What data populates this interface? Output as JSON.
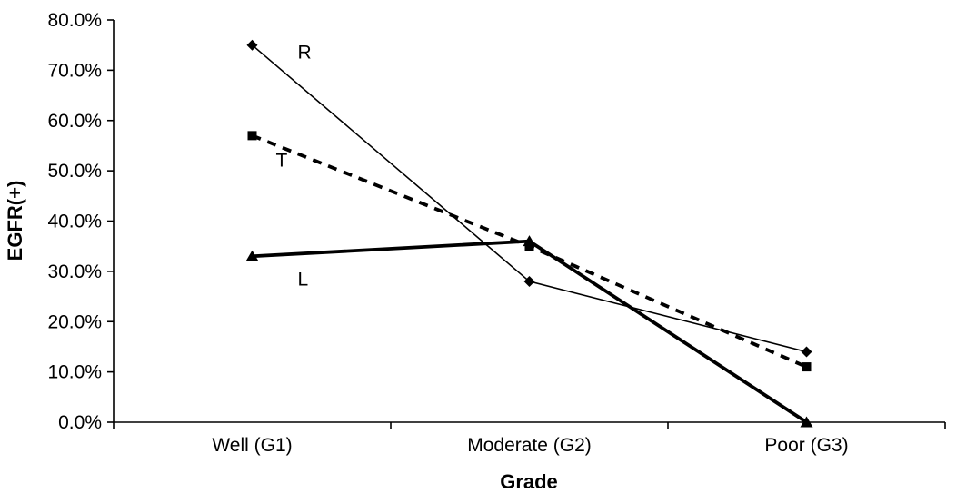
{
  "chart_data": {
    "type": "line",
    "title": "",
    "xlabel": "Grade",
    "ylabel": "EGFR(+)",
    "categories": [
      "Well (G1)",
      "Moderate (G2)",
      "Poor (G3)"
    ],
    "series": [
      {
        "name": "R",
        "values": [
          75,
          28,
          14
        ],
        "unit": "%",
        "marker": "diamond",
        "line_style": "thin-solid",
        "color": "#000000",
        "label_offset": [
          50,
          15
        ]
      },
      {
        "name": "T",
        "values": [
          57,
          35,
          11
        ],
        "unit": "%",
        "marker": "square",
        "line_style": "dashed",
        "color": "#000000",
        "label_offset": [
          26,
          34
        ]
      },
      {
        "name": "L",
        "values": [
          33,
          36,
          0
        ],
        "unit": "%",
        "marker": "triangle",
        "line_style": "thick-solid",
        "color": "#000000",
        "label_offset": [
          50,
          32
        ]
      }
    ],
    "ylim": [
      0,
      80
    ],
    "ytick_step": 10,
    "ytick_labels": [
      "0.0%",
      "10.0%",
      "20.0%",
      "30.0%",
      "40.0%",
      "50.0%",
      "60.0%",
      "70.0%",
      "80.0%"
    ],
    "grid": false,
    "legend": "inline-series-labels",
    "background": "#ffffff",
    "ink": "#000000"
  }
}
